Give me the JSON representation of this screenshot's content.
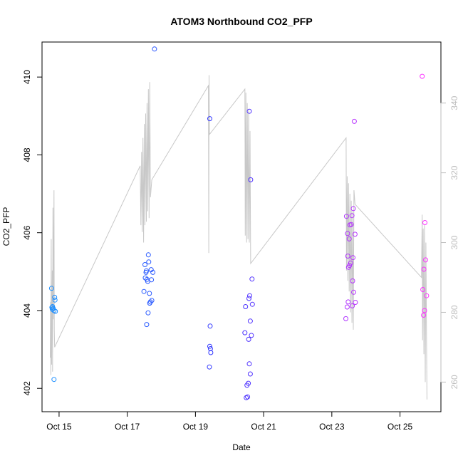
{
  "chart_data": {
    "type": "scatter",
    "title": "ATOM3 Northbound CO2_PFP",
    "xlabel": "Date",
    "ylabel": "CO2_PFP",
    "x_date_start": "2016-10-14",
    "xlim": [
      0.5,
      12.2
    ],
    "ylim": [
      401.4,
      410.9
    ],
    "y_ticks": [
      402,
      404,
      406,
      408,
      410
    ],
    "x_ticks": [
      {
        "value": 1.0,
        "label": "Oct 15"
      },
      {
        "value": 3.0,
        "label": "Oct 17"
      },
      {
        "value": 5.0,
        "label": "Oct 19"
      },
      {
        "value": 7.0,
        "label": "Oct 21"
      },
      {
        "value": 9.0,
        "label": "Oct 23"
      },
      {
        "value": 11.0,
        "label": "Oct 25"
      }
    ],
    "y2_ticks": [
      260,
      280,
      300,
      320,
      340
    ],
    "y2_lim": [
      251.5,
      357.5
    ],
    "grid": false,
    "legend": "none",
    "colors": {
      "points_start": "#1E90FF",
      "points_mid": "#3333FF",
      "points_end": "#FF33FF",
      "line": "#c8c8c8",
      "axis_right": "#bdbdbd"
    },
    "series": [
      {
        "values": [
          {
            "x": 0.78,
            "y": 404.57
          },
          {
            "x": 0.79,
            "y": 404.08
          },
          {
            "x": 0.8,
            "y": 404.03
          },
          {
            "x": 0.81,
            "y": 404.1
          },
          {
            "x": 0.83,
            "y": 404.05
          },
          {
            "x": 0.85,
            "y": 404.0
          },
          {
            "x": 0.87,
            "y": 404.34
          },
          {
            "x": 0.88,
            "y": 404.27
          },
          {
            "x": 0.89,
            "y": 403.98
          },
          {
            "x": 0.85,
            "y": 402.23
          },
          {
            "x": 3.49,
            "y": 404.49
          },
          {
            "x": 3.52,
            "y": 405.18
          },
          {
            "x": 3.53,
            "y": 404.84
          },
          {
            "x": 3.55,
            "y": 404.98
          },
          {
            "x": 3.56,
            "y": 405.02
          },
          {
            "x": 3.57,
            "y": 403.64
          },
          {
            "x": 3.58,
            "y": 404.8
          },
          {
            "x": 3.6,
            "y": 404.75
          },
          {
            "x": 3.61,
            "y": 403.94
          },
          {
            "x": 3.62,
            "y": 405.43
          },
          {
            "x": 3.63,
            "y": 405.25
          },
          {
            "x": 3.65,
            "y": 404.44
          },
          {
            "x": 3.66,
            "y": 404.19
          },
          {
            "x": 3.68,
            "y": 404.22
          },
          {
            "x": 3.7,
            "y": 405.05
          },
          {
            "x": 3.71,
            "y": 404.79
          },
          {
            "x": 3.72,
            "y": 404.26
          },
          {
            "x": 3.75,
            "y": 404.98
          },
          {
            "x": 3.8,
            "y": 410.72
          },
          {
            "x": 5.42,
            "y": 408.93
          },
          {
            "x": 5.42,
            "y": 403.08
          },
          {
            "x": 5.43,
            "y": 403.6
          },
          {
            "x": 5.44,
            "y": 403.02
          },
          {
            "x": 5.45,
            "y": 402.92
          },
          {
            "x": 5.41,
            "y": 402.55
          },
          {
            "x": 6.45,
            "y": 403.43
          },
          {
            "x": 6.47,
            "y": 404.1
          },
          {
            "x": 6.49,
            "y": 401.76
          },
          {
            "x": 6.51,
            "y": 402.08
          },
          {
            "x": 6.53,
            "y": 401.78
          },
          {
            "x": 6.55,
            "y": 402.13
          },
          {
            "x": 6.56,
            "y": 403.26
          },
          {
            "x": 6.57,
            "y": 404.31
          },
          {
            "x": 6.58,
            "y": 409.12
          },
          {
            "x": 6.58,
            "y": 402.63
          },
          {
            "x": 6.59,
            "y": 404.38
          },
          {
            "x": 6.61,
            "y": 403.73
          },
          {
            "x": 6.61,
            "y": 402.37
          },
          {
            "x": 6.62,
            "y": 407.36
          },
          {
            "x": 6.64,
            "y": 403.36
          },
          {
            "x": 6.66,
            "y": 404.81
          },
          {
            "x": 6.67,
            "y": 404.16
          },
          {
            "x": 9.41,
            "y": 403.79
          },
          {
            "x": 9.43,
            "y": 406.42
          },
          {
            "x": 9.45,
            "y": 404.09
          },
          {
            "x": 9.46,
            "y": 405.98
          },
          {
            "x": 9.47,
            "y": 405.4
          },
          {
            "x": 9.48,
            "y": 404.22
          },
          {
            "x": 9.49,
            "y": 405.11
          },
          {
            "x": 9.51,
            "y": 405.84
          },
          {
            "x": 9.52,
            "y": 405.16
          },
          {
            "x": 9.53,
            "y": 406.2
          },
          {
            "x": 9.55,
            "y": 405.22
          },
          {
            "x": 9.57,
            "y": 406.21
          },
          {
            "x": 9.59,
            "y": 406.44
          },
          {
            "x": 9.6,
            "y": 404.12
          },
          {
            "x": 9.61,
            "y": 404.76
          },
          {
            "x": 9.62,
            "y": 405.36
          },
          {
            "x": 9.63,
            "y": 406.62
          },
          {
            "x": 9.64,
            "y": 404.47
          },
          {
            "x": 9.66,
            "y": 408.86
          },
          {
            "x": 9.68,
            "y": 405.96
          },
          {
            "x": 9.69,
            "y": 404.21
          },
          {
            "x": 11.65,
            "y": 410.02
          },
          {
            "x": 11.67,
            "y": 404.54
          },
          {
            "x": 11.69,
            "y": 403.88
          },
          {
            "x": 11.7,
            "y": 405.06
          },
          {
            "x": 11.72,
            "y": 404.0
          },
          {
            "x": 11.73,
            "y": 406.26
          },
          {
            "x": 11.75,
            "y": 405.3
          },
          {
            "x": 11.78,
            "y": 404.38
          }
        ]
      },
      {
        "values": [
          {
            "x": 0.74,
            "y": 267.0
          },
          {
            "x": 0.75,
            "y": 283.0
          },
          {
            "x": 0.76,
            "y": 262.0
          },
          {
            "x": 0.77,
            "y": 301.0
          },
          {
            "x": 0.78,
            "y": 265.0
          },
          {
            "x": 0.8,
            "y": 292.0
          },
          {
            "x": 0.81,
            "y": 263.0
          },
          {
            "x": 0.82,
            "y": 310.0
          },
          {
            "x": 0.83,
            "y": 278.0
          },
          {
            "x": 0.85,
            "y": 315.0
          },
          {
            "x": 0.86,
            "y": 275.0
          },
          {
            "x": 0.87,
            "y": 270.0
          },
          {
            "x": 3.38,
            "y": 322.0
          },
          {
            "x": 3.4,
            "y": 305.0
          },
          {
            "x": 3.42,
            "y": 326.0
          },
          {
            "x": 3.44,
            "y": 303.0
          },
          {
            "x": 3.46,
            "y": 330.0
          },
          {
            "x": 3.48,
            "y": 300.0
          },
          {
            "x": 3.5,
            "y": 334.0
          },
          {
            "x": 3.52,
            "y": 305.0
          },
          {
            "x": 3.54,
            "y": 337.0
          },
          {
            "x": 3.56,
            "y": 306.0
          },
          {
            "x": 3.58,
            "y": 340.0
          },
          {
            "x": 3.6,
            "y": 309.0
          },
          {
            "x": 3.62,
            "y": 344.0
          },
          {
            "x": 3.64,
            "y": 307.0
          },
          {
            "x": 3.66,
            "y": 346.0
          },
          {
            "x": 3.68,
            "y": 313.0
          },
          {
            "x": 3.72,
            "y": 318.0
          },
          {
            "x": 5.38,
            "y": 345.0
          },
          {
            "x": 5.39,
            "y": 297.0
          },
          {
            "x": 5.4,
            "y": 348.0
          },
          {
            "x": 5.41,
            "y": 331.0
          },
          {
            "x": 6.45,
            "y": 344.0
          },
          {
            "x": 6.46,
            "y": 302.0
          },
          {
            "x": 6.48,
            "y": 343.0
          },
          {
            "x": 6.5,
            "y": 300.0
          },
          {
            "x": 6.52,
            "y": 340.0
          },
          {
            "x": 6.54,
            "y": 301.0
          },
          {
            "x": 6.56,
            "y": 338.0
          },
          {
            "x": 6.58,
            "y": 300.0
          },
          {
            "x": 6.6,
            "y": 332.0
          },
          {
            "x": 6.62,
            "y": 294.0
          },
          {
            "x": 9.42,
            "y": 330.0
          },
          {
            "x": 9.43,
            "y": 292.0
          },
          {
            "x": 9.45,
            "y": 319.0
          },
          {
            "x": 9.47,
            "y": 289.0
          },
          {
            "x": 9.49,
            "y": 317.0
          },
          {
            "x": 9.51,
            "y": 286.0
          },
          {
            "x": 9.53,
            "y": 314.0
          },
          {
            "x": 9.55,
            "y": 280.0
          },
          {
            "x": 9.57,
            "y": 312.0
          },
          {
            "x": 9.59,
            "y": 277.0
          },
          {
            "x": 9.61,
            "y": 309.0
          },
          {
            "x": 9.63,
            "y": 275.0
          },
          {
            "x": 9.65,
            "y": 315.0
          },
          {
            "x": 9.68,
            "y": 311.0
          },
          {
            "x": 11.63,
            "y": 290.0
          },
          {
            "x": 11.65,
            "y": 308.0
          },
          {
            "x": 11.66,
            "y": 272.0
          },
          {
            "x": 11.68,
            "y": 304.0
          },
          {
            "x": 11.7,
            "y": 268.0
          },
          {
            "x": 11.72,
            "y": 305.0
          },
          {
            "x": 11.74,
            "y": 260.0
          },
          {
            "x": 11.76,
            "y": 300.0
          },
          {
            "x": 11.79,
            "y": 255.0
          }
        ]
      }
    ]
  }
}
